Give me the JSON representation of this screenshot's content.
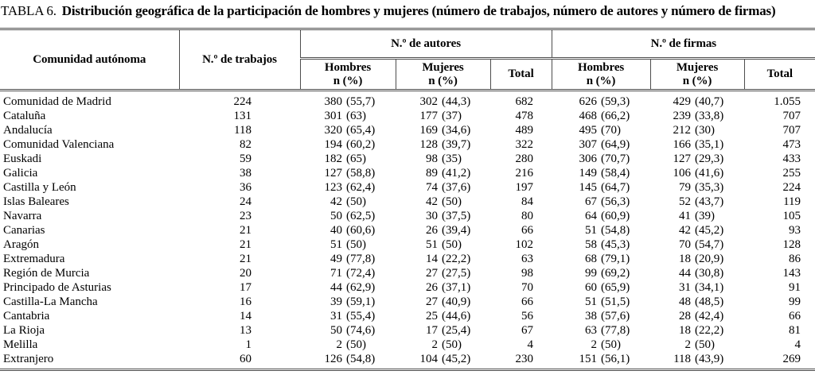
{
  "title": {
    "label": "TABLA 6.",
    "text": "Distribución geográfica de la participación de hombres y mujeres (número de trabajos, número de autores y número de firmas)"
  },
  "table": {
    "col_headers": {
      "comunidad": "Comunidad autónoma",
      "trabajos": "N.º de trabajos",
      "autores_group": "N.º de autores",
      "firmas_group": "N.º de firmas",
      "hombres": "Hombres",
      "mujeres": "Mujeres",
      "n_pct": "n (%)",
      "total": "Total"
    },
    "rows": [
      [
        "Comunidad de Madrid",
        "224",
        "380",
        "(55,7)",
        "302",
        "(44,3)",
        "682",
        "626",
        "(59,3)",
        "429",
        "(40,7)",
        "1.055"
      ],
      [
        "Cataluña",
        "131",
        "301",
        "(63)",
        "177",
        "(37)",
        "478",
        "468",
        "(66,2)",
        "239",
        "(33,8)",
        "707"
      ],
      [
        "Andalucía",
        "118",
        "320",
        "(65,4)",
        "169",
        "(34,6)",
        "489",
        "495",
        "(70)",
        "212",
        "(30)",
        "707"
      ],
      [
        "Comunidad Valenciana",
        "82",
        "194",
        "(60,2)",
        "128",
        "(39,7)",
        "322",
        "307",
        "(64,9)",
        "166",
        "(35,1)",
        "473"
      ],
      [
        "Euskadi",
        "59",
        "182",
        "(65)",
        "98",
        "(35)",
        "280",
        "306",
        "(70,7)",
        "127",
        "(29,3)",
        "433"
      ],
      [
        "Galicia",
        "38",
        "127",
        "(58,8)",
        "89",
        "(41,2)",
        "216",
        "149",
        "(58,4)",
        "106",
        "(41,6)",
        "255"
      ],
      [
        "Castilla y León",
        "36",
        "123",
        "(62,4)",
        "74",
        "(37,6)",
        "197",
        "145",
        "(64,7)",
        "79",
        "(35,3)",
        "224"
      ],
      [
        "Islas Baleares",
        "24",
        "42",
        "(50)",
        "42",
        "(50)",
        "84",
        "67",
        "(56,3)",
        "52",
        "(43,7)",
        "119"
      ],
      [
        "Navarra",
        "23",
        "50",
        "(62,5)",
        "30",
        "(37,5)",
        "80",
        "64",
        "(60,9)",
        "41",
        "(39)",
        "105"
      ],
      [
        "Canarias",
        "21",
        "40",
        "(60,6)",
        "26",
        "(39,4)",
        "66",
        "51",
        "(54,8)",
        "42",
        "(45,2)",
        "93"
      ],
      [
        "Aragón",
        "21",
        "51",
        "(50)",
        "51",
        "(50)",
        "102",
        "58",
        "(45,3)",
        "70",
        "(54,7)",
        "128"
      ],
      [
        "Extremadura",
        "21",
        "49",
        "(77,8)",
        "14",
        "(22,2)",
        "63",
        "68",
        "(79,1)",
        "18",
        "(20,9)",
        "86"
      ],
      [
        "Región de Murcia",
        "20",
        "71",
        "(72,4)",
        "27",
        "(27,5)",
        "98",
        "99",
        "(69,2)",
        "44",
        "(30,8)",
        "143"
      ],
      [
        "Principado de Asturias",
        "17",
        "44",
        "(62,9)",
        "26",
        "(37,1)",
        "70",
        "60",
        "(65,9)",
        "31",
        "(34,1)",
        "91"
      ],
      [
        "Castilla-La Mancha",
        "16",
        "39",
        "(59,1)",
        "27",
        "(40,9)",
        "66",
        "51",
        "(51,5)",
        "48",
        "(48,5)",
        "99"
      ],
      [
        "Cantabria",
        "14",
        "31",
        "(55,4)",
        "25",
        "(44,6)",
        "56",
        "38",
        "(57,6)",
        "28",
        "(42,4)",
        "66"
      ],
      [
        "La Rioja",
        "13",
        "50",
        "(74,6)",
        "17",
        "(25,4)",
        "67",
        "63",
        "(77,8)",
        "18",
        "(22,2)",
        "81"
      ],
      [
        "Melilla",
        "1",
        "2",
        "(50)",
        "2",
        "(50)",
        "4",
        "2",
        "(50)",
        "2",
        "(50)",
        "4"
      ],
      [
        "Extranjero",
        "60",
        "126",
        "(54,8)",
        "104",
        "(45,2)",
        "230",
        "151",
        "(56,1)",
        "118",
        "(43,9)",
        "269"
      ]
    ]
  }
}
